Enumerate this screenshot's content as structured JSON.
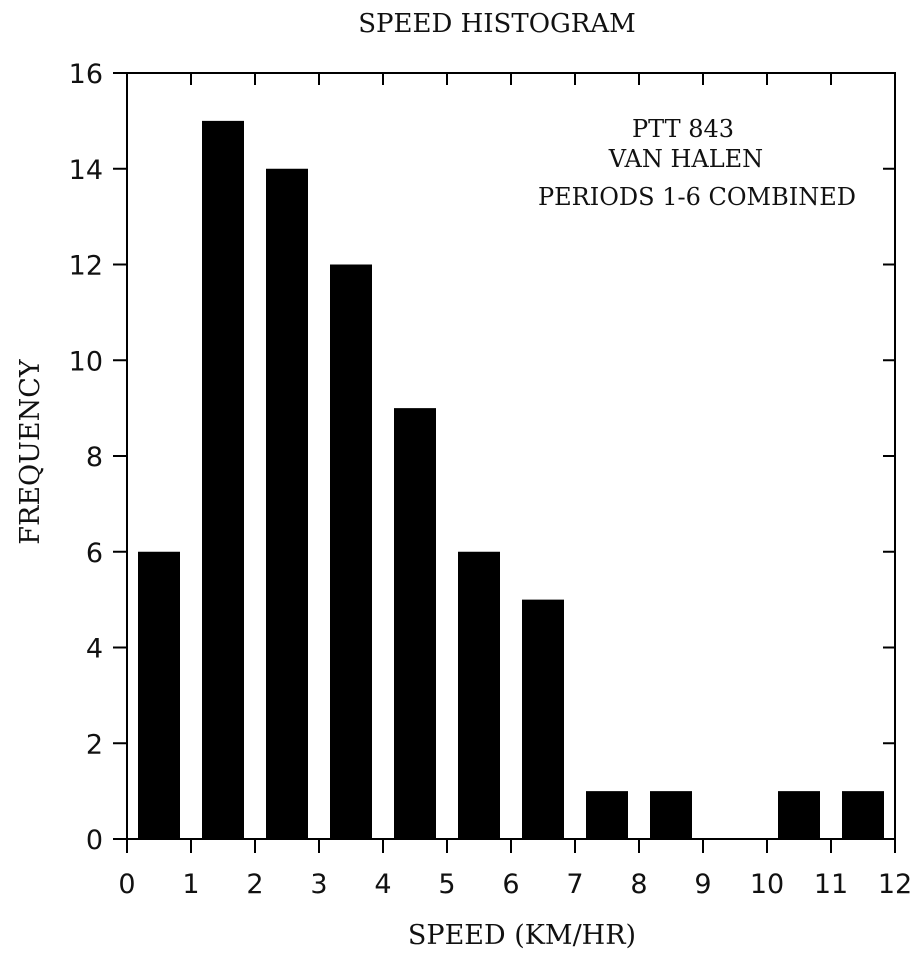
{
  "chart_data": {
    "type": "bar",
    "title": "SPEED HISTOGRAM",
    "xlabel": "SPEED (KM/HR)",
    "ylabel": "FREQUENCY",
    "annotations": [
      "PTT 843",
      "VAN HALEN",
      "PERIODS 1-6 COMBINED"
    ],
    "bins": [
      {
        "from": 0,
        "to": 1,
        "value": 6
      },
      {
        "from": 1,
        "to": 2,
        "value": 15
      },
      {
        "from": 2,
        "to": 3,
        "value": 14
      },
      {
        "from": 3,
        "to": 4,
        "value": 12
      },
      {
        "from": 4,
        "to": 5,
        "value": 9
      },
      {
        "from": 5,
        "to": 6,
        "value": 6
      },
      {
        "from": 6,
        "to": 7,
        "value": 5
      },
      {
        "from": 7,
        "to": 8,
        "value": 1
      },
      {
        "from": 8,
        "to": 9,
        "value": 1
      },
      {
        "from": 9,
        "to": 10,
        "value": 0
      },
      {
        "from": 10,
        "to": 11,
        "value": 1
      },
      {
        "from": 11,
        "to": 12,
        "value": 1
      }
    ],
    "xticks": [
      "0",
      "1",
      "2",
      "3",
      "4",
      "5",
      "6",
      "7",
      "8",
      "9",
      "10",
      "11",
      "12"
    ],
    "yticks": [
      "0",
      "2",
      "4",
      "6",
      "8",
      "10",
      "12",
      "14",
      "16"
    ],
    "xlim": [
      0,
      12
    ],
    "ylim": [
      0,
      16
    ],
    "grid": false,
    "bar_color": "#000000"
  }
}
